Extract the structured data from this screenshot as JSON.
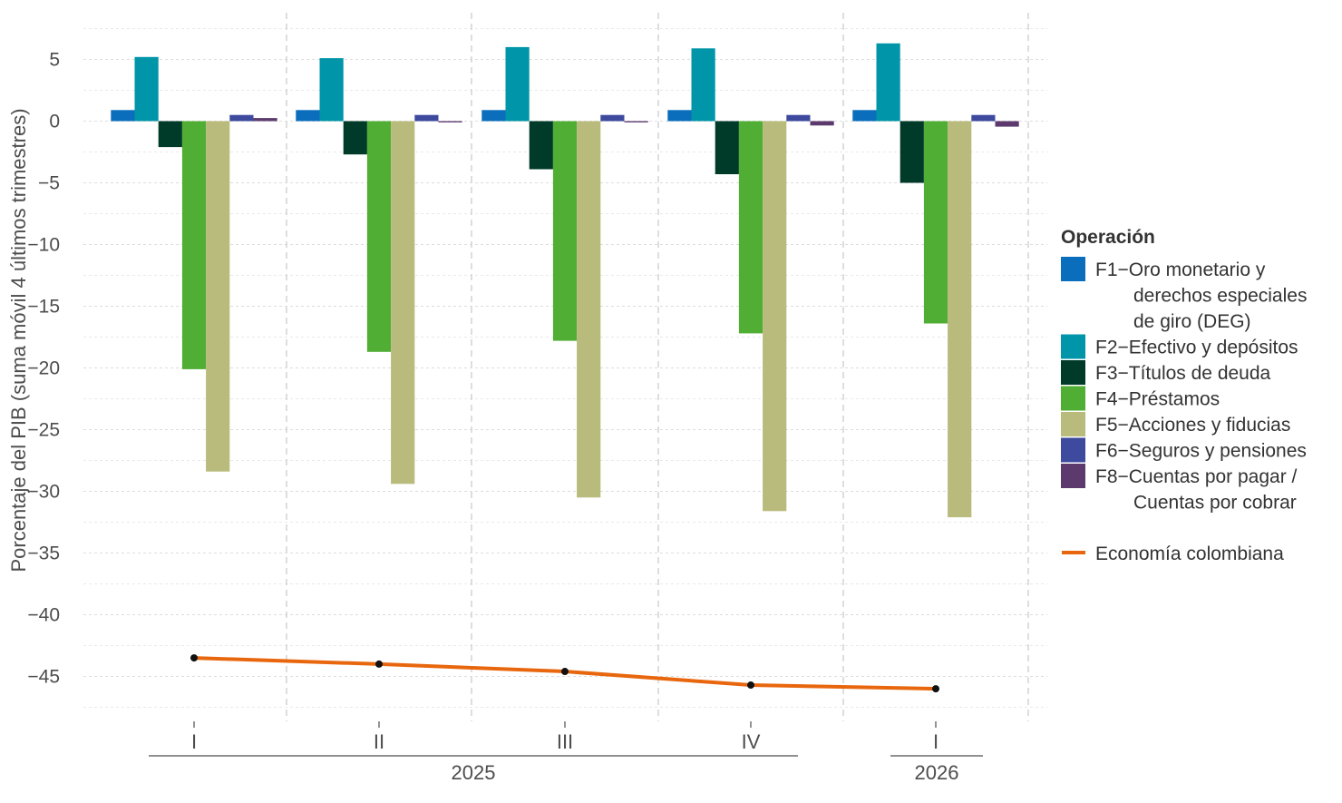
{
  "chart_data": {
    "type": "bar",
    "ylabel": "Porcentaje del PIB (suma móvil 4 últimos trimestres)",
    "ylim": [
      -48.5,
      8.5
    ],
    "yticks": [
      5,
      0,
      -5,
      -10,
      -15,
      -20,
      -25,
      -30,
      -35,
      -40,
      -45
    ],
    "ytick_labels": [
      "5",
      "0",
      "−5",
      "−10",
      "−15",
      "−20",
      "−25",
      "−30",
      "−35",
      "−40",
      "−45"
    ],
    "categories": [
      "I",
      "II",
      "III",
      "IV",
      "I"
    ],
    "groups": [
      {
        "label": "2025",
        "categories": [
          0,
          1,
          2,
          3
        ]
      },
      {
        "label": "2026",
        "categories": [
          4
        ]
      }
    ],
    "grid": true,
    "legend_position": "right",
    "legend_title": "Operación",
    "series": [
      {
        "name": "F1−Oro monetario y derechos especiales de giro (DEG)",
        "name_lines": [
          "F1−Oro monetario y",
          "derechos especiales",
          "de giro (DEG)"
        ],
        "color": "#0A6EBD",
        "values": [
          0.9,
          0.9,
          0.9,
          0.9,
          0.9
        ]
      },
      {
        "name": "F2−Efectivo y depósitos",
        "name_lines": [
          "F2−Efectivo y depósitos"
        ],
        "color": "#0095A8",
        "values": [
          5.2,
          5.1,
          6.0,
          5.9,
          6.3
        ]
      },
      {
        "name": "F3−Títulos de deuda",
        "name_lines": [
          "F3−Títulos de deuda"
        ],
        "color": "#003A28",
        "values": [
          -2.1,
          -2.7,
          -3.9,
          -4.3,
          -5.0
        ]
      },
      {
        "name": "F4−Préstamos",
        "name_lines": [
          "F4−Préstamos"
        ],
        "color": "#4FAE33",
        "values": [
          -20.1,
          -18.7,
          -17.8,
          -17.2,
          -16.4
        ]
      },
      {
        "name": "F5−Acciones y fiducias",
        "name_lines": [
          "F5−Acciones y fiducias"
        ],
        "color": "#B8BB7C",
        "values": [
          -28.4,
          -29.4,
          -30.5,
          -31.6,
          -32.1
        ]
      },
      {
        "name": "F6−Seguros y pensiones",
        "name_lines": [
          "F6−Seguros y pensiones"
        ],
        "color": "#3E4A9E",
        "values": [
          0.5,
          0.5,
          0.5,
          0.5,
          0.5
        ]
      },
      {
        "name": "F8−Cuentas por pagar / Cuentas por cobrar",
        "name_lines": [
          "F8−Cuentas por pagar /",
          "Cuentas por cobrar"
        ],
        "color": "#5C3A6E",
        "values": [
          0.25,
          -0.1,
          -0.1,
          -0.35,
          -0.45
        ]
      }
    ],
    "line_series": {
      "name": "Economía colombiana",
      "color": "#E8670E",
      "values": [
        -43.5,
        -44.0,
        -44.6,
        -45.7,
        -46.0
      ]
    }
  }
}
